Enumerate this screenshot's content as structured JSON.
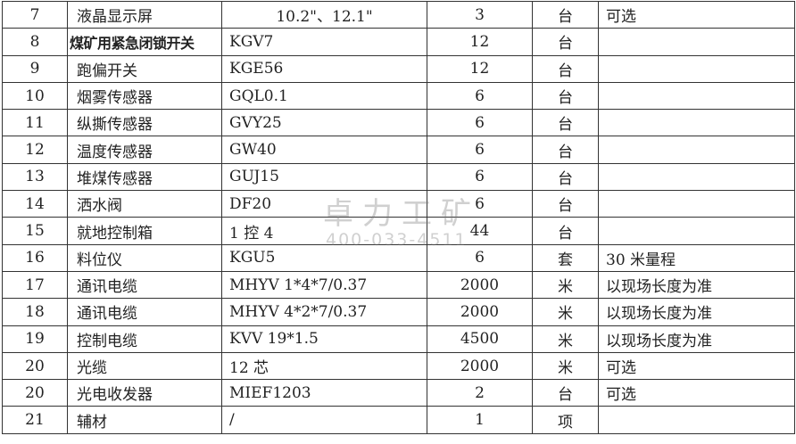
{
  "rows": [
    {
      "no": "7",
      "name": "液晶显示屏",
      "model": "10.2\"、12.1\"",
      "qty": "3",
      "unit": "台",
      "remark": "可选"
    },
    {
      "no": "8",
      "name": "煤矿用紧急闭锁开关",
      "model": "KGV7",
      "qty": "12",
      "unit": "台",
      "remark": ""
    },
    {
      "no": "9",
      "name": "跑偏开关",
      "model": "KGE56",
      "qty": "12",
      "unit": "台",
      "remark": ""
    },
    {
      "no": "10",
      "name": "烟雾传感器",
      "model": "GQL0.1",
      "qty": "6",
      "unit": "台",
      "remark": ""
    },
    {
      "no": "11",
      "name": "纵撕传感器",
      "model": "GVY25",
      "qty": "6",
      "unit": "台",
      "remark": ""
    },
    {
      "no": "12",
      "name": "温度传感器",
      "model": "GW40",
      "qty": "6",
      "unit": "台",
      "remark": ""
    },
    {
      "no": "13",
      "name": "堆煤传感器",
      "model": "GUJ15",
      "qty": "6",
      "unit": "台",
      "remark": ""
    },
    {
      "no": "14",
      "name": "洒水阀",
      "model": "DF20",
      "qty": "6",
      "unit": "台",
      "remark": ""
    },
    {
      "no": "15",
      "name": "就地控制箱",
      "model": "1 控 4",
      "qty": "44",
      "unit": "台",
      "remark": ""
    },
    {
      "no": "16",
      "name": "料位仪",
      "model": "KGU5",
      "qty": "6",
      "unit": "套",
      "remark": "30 米量程"
    },
    {
      "no": "17",
      "name": "通讯电缆",
      "model": "MHYV 1*4*7/0.37",
      "qty": "2000",
      "unit": "米",
      "remark": "以现场长度为准"
    },
    {
      "no": "18",
      "name": "通讯电缆",
      "model": "MHYV 4*2*7/0.37",
      "qty": "2000",
      "unit": "米",
      "remark": "以现场长度为准"
    },
    {
      "no": "19",
      "name": "控制电缆",
      "model": "KVV  19*1.5",
      "qty": "4500",
      "unit": "米",
      "remark": "以现场长度为准"
    },
    {
      "no": "20",
      "name": "光缆",
      "model": "12 芯",
      "qty": "2000",
      "unit": "米",
      "remark": "可选"
    },
    {
      "no": "20",
      "name": "光电收发器",
      "model": "MIEF1203",
      "qty": "2",
      "unit": "台",
      "remark": "可选"
    },
    {
      "no": "21",
      "name": "辅材",
      "model": "/",
      "qty": "1",
      "unit": "项",
      "remark": ""
    }
  ],
  "watermark": {
    "brand": "卓力工矿",
    "phone": "400-033-4511"
  }
}
